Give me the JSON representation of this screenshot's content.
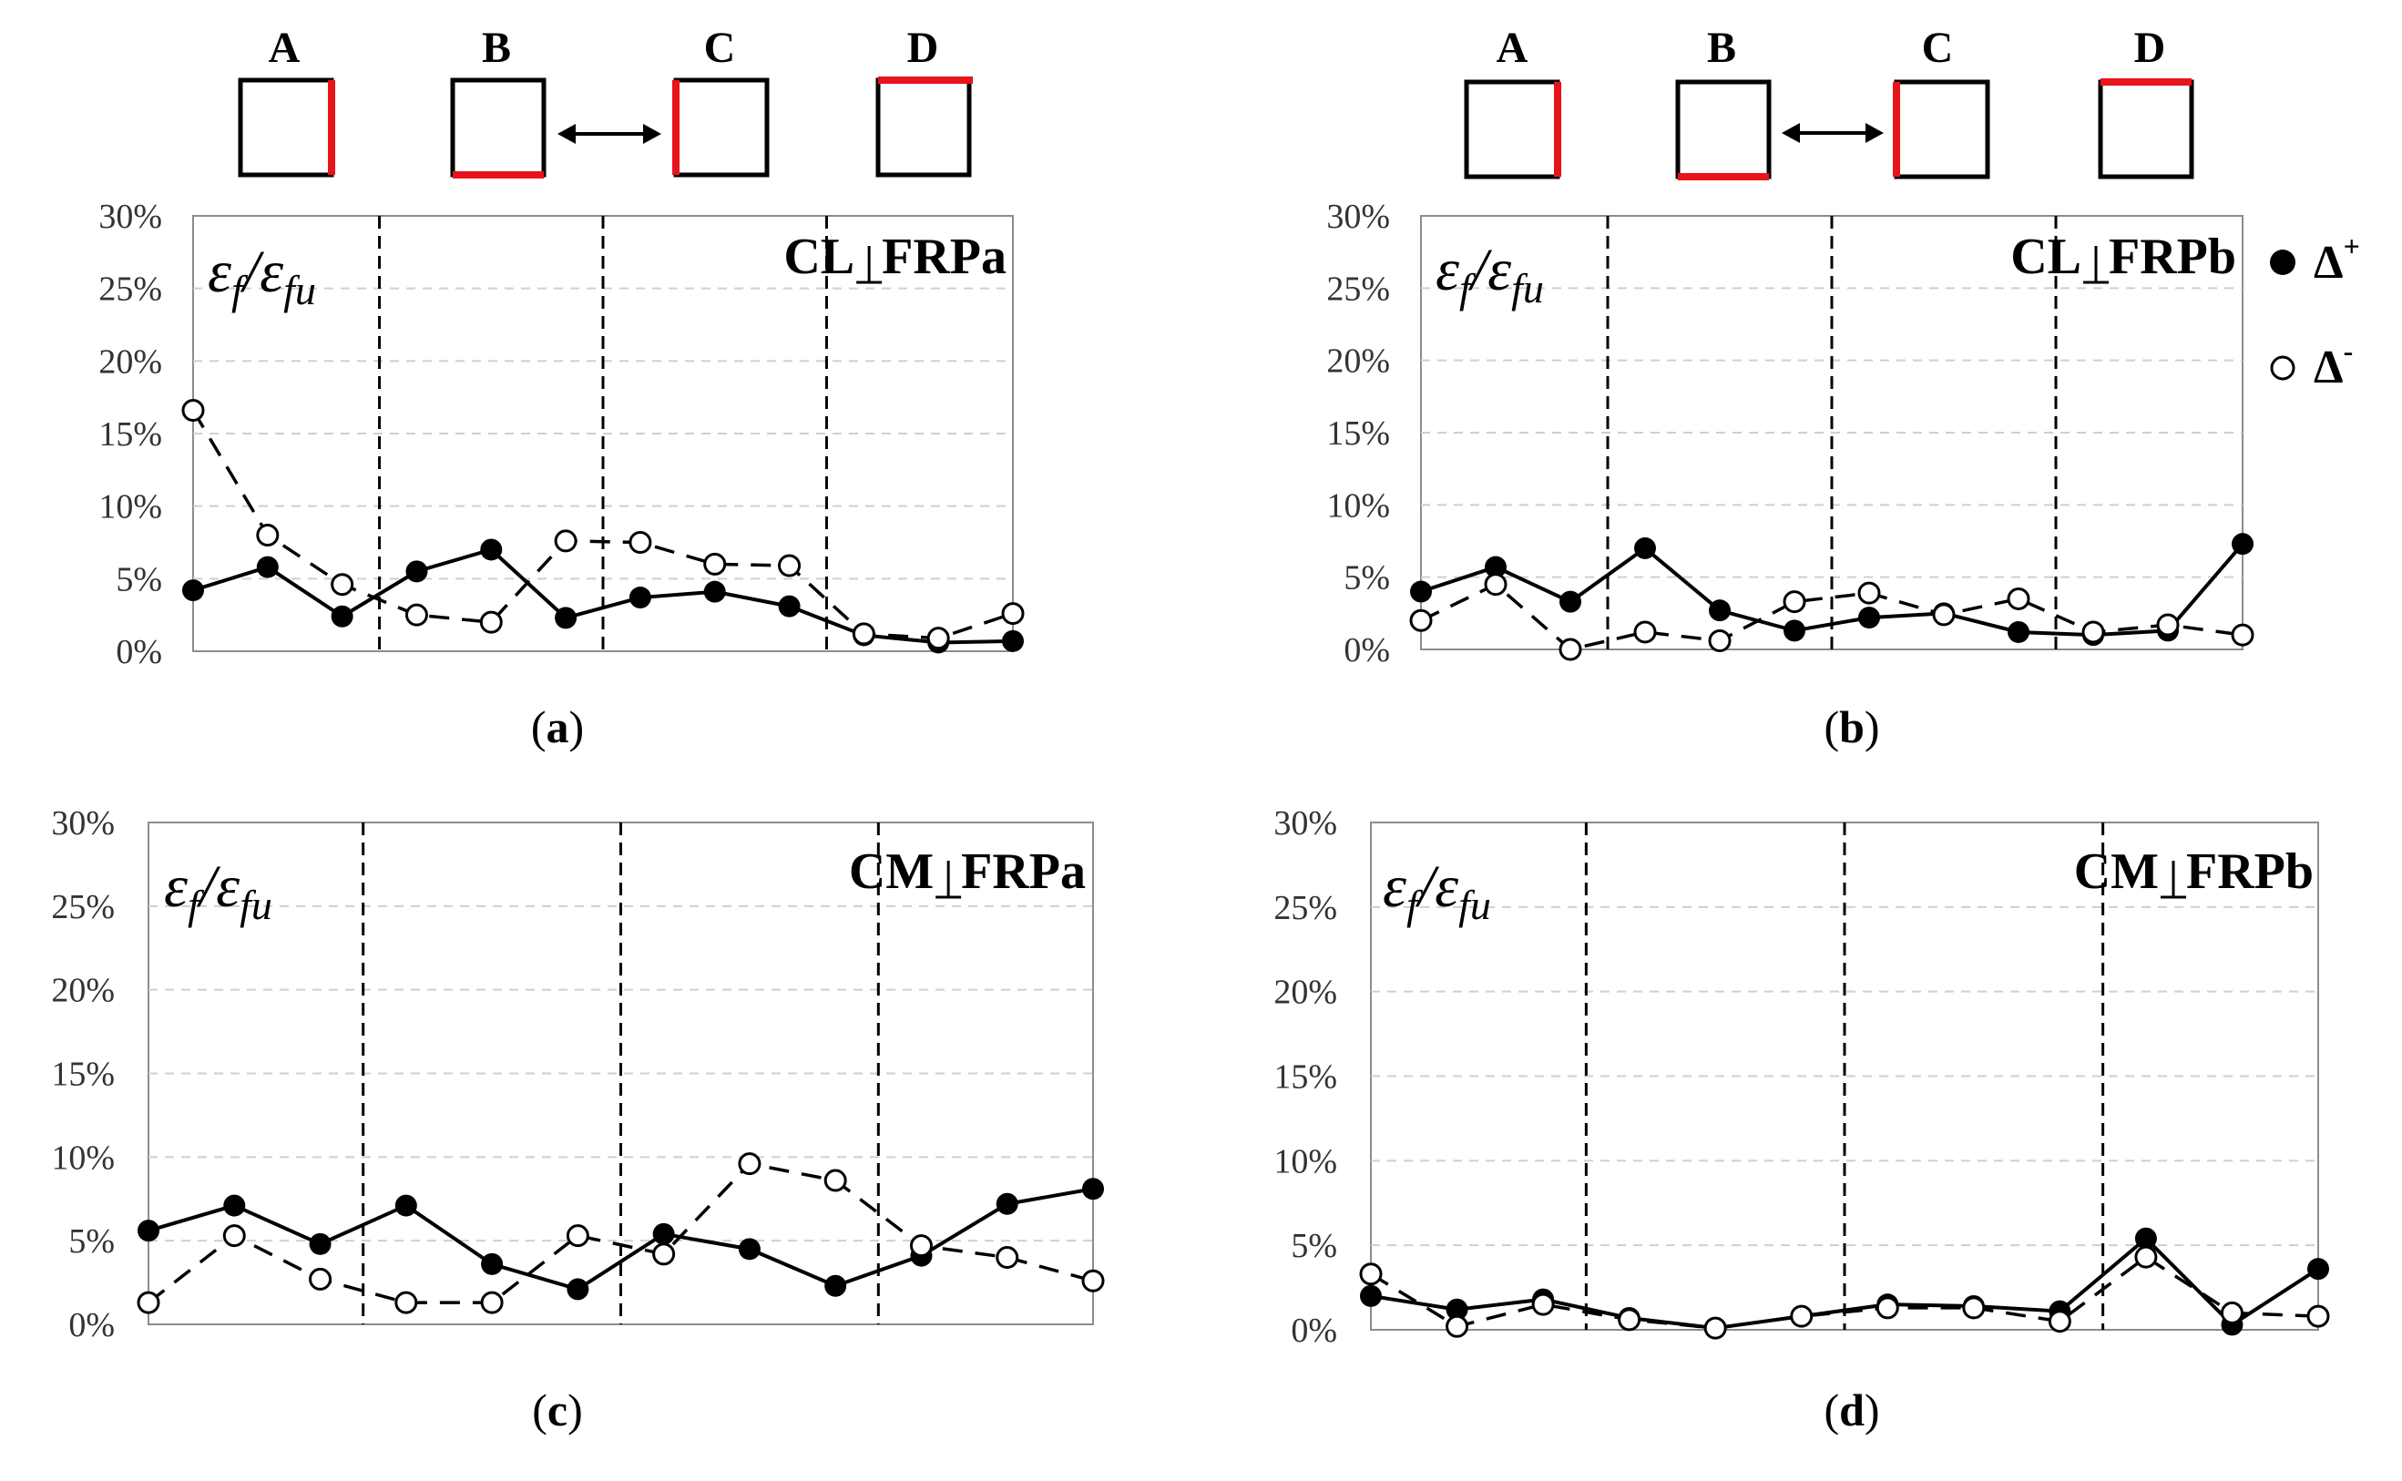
{
  "chart_data": [
    {
      "id": "a",
      "type": "line",
      "panel_label": "a",
      "title_left": "CL",
      "title_right": "FRPa",
      "ratio_label": "εf/εfu",
      "ylim": [
        0,
        30
      ],
      "y_ticks": [
        "0%",
        "5%",
        "10%",
        "15%",
        "20%",
        "25%",
        "30%"
      ],
      "grid": true,
      "x": [
        1,
        2,
        3,
        4,
        5,
        6,
        7,
        8,
        9,
        10,
        11,
        12
      ],
      "zone_boundaries": [
        3.5,
        6.5,
        9.5
      ],
      "series": [
        {
          "name": "Δ+",
          "marker": "filled",
          "values": [
            4.2,
            5.8,
            2.4,
            5.5,
            7.0,
            2.3,
            3.7,
            4.1,
            3.1,
            1.1,
            0.6,
            0.7
          ]
        },
        {
          "name": "Δ-",
          "marker": "open",
          "values": [
            16.6,
            8.0,
            4.6,
            2.5,
            2.0,
            7.6,
            7.5,
            6.0,
            5.9,
            1.2,
            0.9,
            2.6
          ]
        }
      ]
    },
    {
      "id": "b",
      "type": "line",
      "panel_label": "b",
      "title_left": "CL",
      "title_right": "FRPb",
      "ratio_label": "εf/εfu",
      "ylim": [
        0,
        30
      ],
      "y_ticks": [
        "0%",
        "5%",
        "10%",
        "15%",
        "20%",
        "25%",
        "30%"
      ],
      "grid": true,
      "x": [
        1,
        2,
        3,
        4,
        5,
        6,
        7,
        8,
        9,
        10,
        11,
        12
      ],
      "zone_boundaries": [
        3.5,
        6.5,
        9.5
      ],
      "series": [
        {
          "name": "Δ+",
          "marker": "filled",
          "values": [
            4.0,
            5.7,
            3.3,
            7.0,
            2.7,
            1.3,
            2.2,
            2.5,
            1.2,
            1.0,
            1.3,
            7.3
          ]
        },
        {
          "name": "Δ-",
          "marker": "open",
          "values": [
            2.0,
            4.5,
            0.0,
            1.2,
            0.6,
            3.3,
            3.9,
            2.4,
            3.5,
            1.2,
            1.7,
            1.0
          ]
        }
      ]
    },
    {
      "id": "c",
      "type": "line",
      "panel_label": "c",
      "title_left": "CM",
      "title_right": "FRPa",
      "ratio_label": "εf/εfu",
      "ylim": [
        0,
        30
      ],
      "y_ticks": [
        "0%",
        "5%",
        "10%",
        "15%",
        "20%",
        "25%",
        "30%"
      ],
      "grid": true,
      "x": [
        1,
        2,
        3,
        4,
        5,
        6,
        7,
        8,
        9,
        10,
        11,
        12
      ],
      "zone_boundaries": [
        3.5,
        6.5,
        9.5
      ],
      "series": [
        {
          "name": "Δ+",
          "marker": "filled",
          "values": [
            5.6,
            7.1,
            4.8,
            7.1,
            3.6,
            2.1,
            5.4,
            4.5,
            2.3,
            4.1,
            7.2,
            8.1
          ]
        },
        {
          "name": "Δ-",
          "marker": "open",
          "values": [
            1.3,
            5.3,
            2.7,
            1.3,
            1.3,
            5.3,
            4.2,
            9.6,
            8.6,
            4.7,
            4.0,
            2.6
          ]
        }
      ]
    },
    {
      "id": "d",
      "type": "line",
      "panel_label": "d",
      "title_left": "CM",
      "title_right": "FRPb",
      "ratio_label": "εf/εfu",
      "ylim": [
        0,
        30
      ],
      "y_ticks": [
        "0%",
        "5%",
        "10%",
        "15%",
        "20%",
        "25%",
        "30%"
      ],
      "grid": true,
      "x": [
        1,
        2,
        3,
        4,
        5,
        6,
        7,
        8,
        9,
        10,
        11,
        12
      ],
      "zone_boundaries": [
        3.5,
        6.5,
        9.5
      ],
      "series": [
        {
          "name": "Δ+",
          "marker": "filled",
          "values": [
            2.0,
            1.2,
            1.8,
            0.7,
            0.1,
            0.8,
            1.5,
            1.4,
            1.1,
            5.4,
            0.3,
            3.6
          ]
        },
        {
          "name": "Δ-",
          "marker": "open",
          "values": [
            3.3,
            0.2,
            1.5,
            0.6,
            0.1,
            0.8,
            1.3,
            1.3,
            0.5,
            4.3,
            1.0,
            0.8
          ]
        }
      ]
    }
  ],
  "zone_labels": [
    "A",
    "B",
    "C",
    "D"
  ],
  "legend": {
    "filled": "Δ",
    "filled_sup": "+",
    "open": "Δ",
    "open_sup": "-"
  },
  "colors": {
    "line": "#000000",
    "highlight": "#e8141b",
    "grid": "#cfcfcf",
    "axis": "#8c8c8c"
  }
}
